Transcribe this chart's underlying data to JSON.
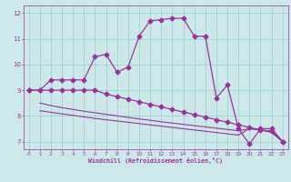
{
  "xlabel": "Windchill (Refroidissement éolien,°C)",
  "background_color": "#cce8e8",
  "line_color": "#993399",
  "grid_color": "#99cccc",
  "spine_color": "#993399",
  "xlim": [
    -0.5,
    23.5
  ],
  "ylim": [
    6.7,
    12.3
  ],
  "yticks": [
    7,
    8,
    9,
    10,
    11,
    12
  ],
  "xticks": [
    0,
    1,
    2,
    3,
    4,
    5,
    6,
    7,
    8,
    9,
    10,
    11,
    12,
    13,
    14,
    15,
    16,
    17,
    18,
    19,
    20,
    21,
    22,
    23
  ],
  "s1_x": [
    0,
    1,
    2,
    3,
    4,
    5,
    6,
    7,
    8,
    9,
    10,
    11,
    12,
    13,
    14,
    15,
    16,
    17,
    18,
    19,
    20,
    21,
    22,
    23
  ],
  "s1_y": [
    9.0,
    9.0,
    9.4,
    9.4,
    9.4,
    9.4,
    10.3,
    10.4,
    9.7,
    9.9,
    11.1,
    11.7,
    11.75,
    11.8,
    11.8,
    11.1,
    11.1,
    8.7,
    9.2,
    7.5,
    6.9,
    7.5,
    7.5,
    7.0
  ],
  "s2_x": [
    0,
    1,
    2,
    3,
    4,
    5,
    6,
    7,
    8,
    9,
    10,
    11,
    12,
    13,
    14,
    15,
    16,
    17,
    18,
    19,
    20,
    21,
    22,
    23
  ],
  "s2_y": [
    9.0,
    9.0,
    9.0,
    9.0,
    9.0,
    9.0,
    9.0,
    8.85,
    8.75,
    8.65,
    8.55,
    8.45,
    8.35,
    8.25,
    8.15,
    8.05,
    7.95,
    7.85,
    7.75,
    7.65,
    7.55,
    7.45,
    7.4,
    7.0
  ],
  "s3_x": [
    1,
    2,
    3,
    4,
    5,
    6,
    7,
    8,
    9,
    10,
    11,
    12,
    13,
    14,
    15,
    16,
    17,
    18,
    19,
    20,
    21,
    22,
    23
  ],
  "s3_y": [
    8.5,
    8.4,
    8.32,
    8.25,
    8.18,
    8.12,
    8.06,
    8.0,
    7.94,
    7.88,
    7.83,
    7.77,
    7.72,
    7.67,
    7.62,
    7.57,
    7.52,
    7.47,
    7.42,
    7.5,
    7.45,
    7.4,
    7.0
  ],
  "s4_x": [
    1,
    2,
    3,
    4,
    5,
    6,
    7,
    8,
    9,
    10,
    11,
    12,
    13,
    14,
    15,
    16,
    17,
    18,
    19,
    20,
    21,
    22,
    23
  ],
  "s4_y": [
    8.2,
    8.14,
    8.08,
    8.02,
    7.96,
    7.9,
    7.85,
    7.8,
    7.75,
    7.7,
    7.65,
    7.6,
    7.55,
    7.5,
    7.45,
    7.4,
    7.35,
    7.3,
    7.25,
    7.5,
    7.45,
    7.35,
    7.0
  ]
}
